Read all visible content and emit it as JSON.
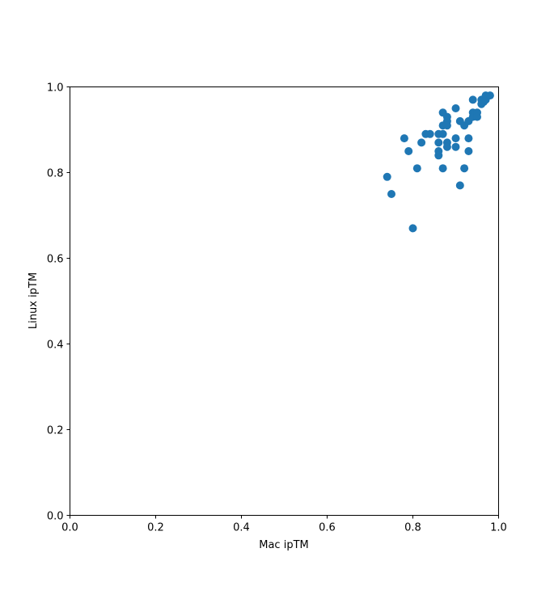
{
  "chart_data": {
    "type": "scatter",
    "title": "",
    "xlabel": "Mac ipTM",
    "ylabel": "Linux ipTM",
    "xlim": [
      0,
      1
    ],
    "ylim": [
      0,
      1
    ],
    "grid": false,
    "xticks": [
      "0.0",
      "0.2",
      "0.4",
      "0.6",
      "0.8",
      "1.0"
    ],
    "yticks": [
      "0.0",
      "0.2",
      "0.4",
      "0.6",
      "0.8",
      "1.0"
    ],
    "marker_color": "#1f77b4",
    "points": [
      [
        0.74,
        0.79
      ],
      [
        0.75,
        0.75
      ],
      [
        0.8,
        0.67
      ],
      [
        0.78,
        0.88
      ],
      [
        0.79,
        0.85
      ],
      [
        0.81,
        0.81
      ],
      [
        0.82,
        0.87
      ],
      [
        0.83,
        0.89
      ],
      [
        0.84,
        0.89
      ],
      [
        0.86,
        0.89
      ],
      [
        0.87,
        0.89
      ],
      [
        0.86,
        0.87
      ],
      [
        0.86,
        0.85
      ],
      [
        0.86,
        0.84
      ],
      [
        0.87,
        0.81
      ],
      [
        0.87,
        0.91
      ],
      [
        0.87,
        0.94
      ],
      [
        0.88,
        0.93
      ],
      [
        0.88,
        0.92
      ],
      [
        0.88,
        0.91
      ],
      [
        0.88,
        0.87
      ],
      [
        0.88,
        0.86
      ],
      [
        0.9,
        0.95
      ],
      [
        0.9,
        0.88
      ],
      [
        0.9,
        0.86
      ],
      [
        0.91,
        0.92
      ],
      [
        0.91,
        0.77
      ],
      [
        0.92,
        0.91
      ],
      [
        0.92,
        0.81
      ],
      [
        0.93,
        0.92
      ],
      [
        0.93,
        0.88
      ],
      [
        0.93,
        0.85
      ],
      [
        0.94,
        0.97
      ],
      [
        0.94,
        0.94
      ],
      [
        0.94,
        0.93
      ],
      [
        0.95,
        0.94
      ],
      [
        0.95,
        0.93
      ],
      [
        0.96,
        0.97
      ],
      [
        0.96,
        0.96
      ],
      [
        0.965,
        0.965
      ],
      [
        0.97,
        0.97
      ],
      [
        0.97,
        0.98
      ],
      [
        0.98,
        0.98
      ]
    ]
  }
}
